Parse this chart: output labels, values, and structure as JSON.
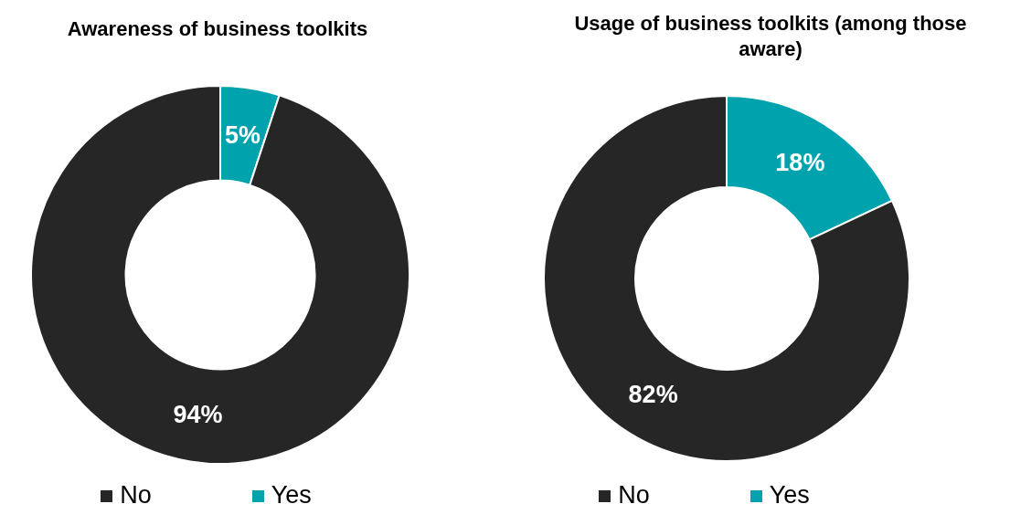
{
  "chart_data": [
    {
      "type": "donut",
      "title": "Awareness of business toolkits",
      "categories": [
        "Yes",
        "No"
      ],
      "values": [
        5,
        94
      ],
      "value_labels": [
        "5%",
        "94%"
      ],
      "colors": [
        "#00a3ad",
        "#262626"
      ],
      "legend": "bottom"
    },
    {
      "type": "donut",
      "title": "Usage of business toolkits (among those aware)",
      "categories": [
        "Yes",
        "No"
      ],
      "values": [
        18,
        82
      ],
      "value_labels": [
        "18%",
        "82%"
      ],
      "colors": [
        "#00a3ad",
        "#262626"
      ],
      "legend": "bottom"
    }
  ]
}
